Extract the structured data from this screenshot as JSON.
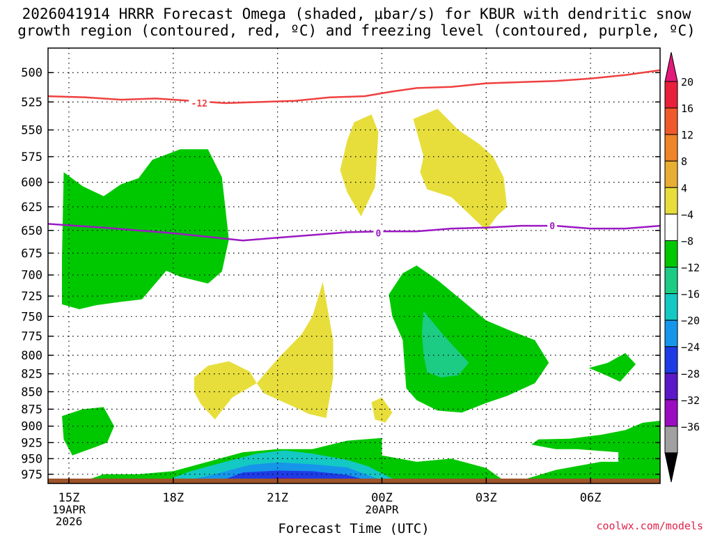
{
  "title_line1": "2026041914 HRRR Forecast Omega (shaded, μbar/s) for KBUR with dendritic snow",
  "title_line2": "growth region (contoured, red, ºC) and freezing level (contoured, purple, ºC)",
  "credit": "coolwx.com/models",
  "chart_data": {
    "type": "time-height cross section",
    "xlabel": "Forecast Time (UTC)",
    "x_ticks": [
      {
        "hour": 0,
        "label": "15Z",
        "sub1": "19APR",
        "sub2": "2026"
      },
      {
        "hour": 3,
        "label": "18Z"
      },
      {
        "hour": 6,
        "label": "21Z"
      },
      {
        "hour": 9,
        "label": "00Z",
        "sub1": "20APR"
      },
      {
        "hour": 12,
        "label": "03Z"
      },
      {
        "hour": 15,
        "label": "06Z"
      }
    ],
    "xlim_hours": [
      -0.6,
      17.0
    ],
    "ylabel": "",
    "y_ticks": [
      500,
      525,
      550,
      575,
      600,
      625,
      650,
      675,
      700,
      725,
      750,
      775,
      800,
      825,
      850,
      875,
      900,
      925,
      950,
      975
    ],
    "ylim_hPa": [
      990,
      480
    ],
    "y_scale": "log-pressure (inverted)",
    "colorbar": {
      "labels": [
        "20",
        "16",
        "12",
        "8",
        "4",
        "−4",
        "−8",
        "−12",
        "−16",
        "−20",
        "−24",
        "−28",
        "−32",
        "−36"
      ],
      "colors": [
        "#e8203a",
        "#f05a2a",
        "#ef8428",
        "#e7ae32",
        "#e7de3c",
        "#ffffff",
        "#00c800",
        "#1ccc84",
        "#14c8c4",
        "#1696ea",
        "#1e3ce6",
        "#5a18c8",
        "#9a0cc0",
        "#a0a0a0"
      ],
      "top_arrow_color": "#e21a7a",
      "bottom_arrow_color": "#000000"
    },
    "contours": [
      {
        "color": "#f04040",
        "label": "-12",
        "label_at": [
          3.75,
          526
        ],
        "points": [
          [
            -0.6,
            520
          ],
          [
            0.5,
            521
          ],
          [
            1.5,
            523
          ],
          [
            2.5,
            522
          ],
          [
            3.5,
            524
          ],
          [
            4.5,
            526
          ],
          [
            5.5,
            525
          ],
          [
            6.5,
            524
          ],
          [
            7.5,
            521
          ],
          [
            8.5,
            520
          ],
          [
            9.3,
            516
          ],
          [
            10,
            513
          ],
          [
            11,
            512
          ],
          [
            12,
            509
          ],
          [
            13,
            508
          ],
          [
            14,
            507
          ],
          [
            15,
            505
          ],
          [
            16,
            502
          ],
          [
            17,
            498
          ]
        ]
      },
      {
        "color": "#9b19c3",
        "label": "0",
        "label_at_list": [
          [
            8.9,
            653
          ],
          [
            13.9,
            645
          ]
        ],
        "points": [
          [
            -0.6,
            643
          ],
          [
            1,
            647
          ],
          [
            2,
            650
          ],
          [
            3,
            653
          ],
          [
            4,
            657
          ],
          [
            5,
            661
          ],
          [
            6,
            658
          ],
          [
            7,
            655
          ],
          [
            8,
            652
          ],
          [
            9,
            651
          ],
          [
            10,
            651
          ],
          [
            11,
            648
          ],
          [
            12,
            647
          ],
          [
            13,
            645
          ],
          [
            14,
            645
          ],
          [
            15,
            648
          ],
          [
            16,
            648
          ],
          [
            17,
            645
          ]
        ]
      }
    ],
    "shaded_regions": [
      {
        "level": "-4 to -8",
        "color": "#00c800",
        "points": [
          [
            -0.15,
            590
          ],
          [
            0.4,
            604
          ],
          [
            1,
            614
          ],
          [
            1.5,
            602
          ],
          [
            2,
            596
          ],
          [
            2.4,
            578
          ],
          [
            3.2,
            568
          ],
          [
            4,
            568
          ],
          [
            4.4,
            595
          ],
          [
            4.6,
            660
          ],
          [
            4.4,
            696
          ],
          [
            4,
            710
          ],
          [
            3.2,
            702
          ],
          [
            2.8,
            695
          ],
          [
            2.1,
            729
          ],
          [
            1.5,
            732
          ],
          [
            0.8,
            736
          ],
          [
            0.3,
            741
          ],
          [
            -0.2,
            735
          ],
          [
            -0.2,
            680
          ]
        ]
      },
      {
        "level": "-4 to -8",
        "color": "#00c800",
        "points": [
          [
            -0.2,
            885
          ],
          [
            0.4,
            875
          ],
          [
            1,
            872
          ],
          [
            1.3,
            900
          ],
          [
            1.1,
            925
          ],
          [
            0.6,
            935
          ],
          [
            0.1,
            945
          ],
          [
            -0.15,
            920
          ]
        ]
      },
      {
        "level": "-4 to -8",
        "color": "#00c800",
        "points": [
          [
            0.5,
            985
          ],
          [
            1,
            975
          ],
          [
            2,
            975
          ],
          [
            3,
            970
          ],
          [
            4,
            955
          ],
          [
            5,
            940
          ],
          [
            6,
            935
          ],
          [
            7,
            935
          ],
          [
            8,
            922
          ],
          [
            9,
            918
          ],
          [
            9,
            945
          ],
          [
            10,
            955
          ],
          [
            11,
            950
          ],
          [
            12,
            965
          ],
          [
            12.5,
            985
          ]
        ]
      },
      {
        "level": "-4 to -8",
        "color": "#00c800",
        "points": [
          [
            13,
            985
          ],
          [
            14,
            968
          ],
          [
            15.3,
            955
          ],
          [
            15.8,
            955
          ],
          [
            15.8,
            940
          ],
          [
            14.6,
            935
          ],
          [
            14,
            935
          ],
          [
            13.3,
            928
          ],
          [
            13.5,
            920
          ],
          [
            14.4,
            919
          ],
          [
            15.3,
            913
          ],
          [
            16,
            906
          ],
          [
            16.5,
            895
          ],
          [
            17,
            892
          ],
          [
            17,
            985
          ]
        ]
      },
      {
        "level": "-4 to -8",
        "color": "#00c800",
        "points": [
          [
            9.2,
            723
          ],
          [
            9.6,
            698
          ],
          [
            10,
            689
          ],
          [
            10.6,
            706
          ],
          [
            11.5,
            737
          ],
          [
            12,
            755
          ],
          [
            12.7,
            768
          ],
          [
            13.4,
            780
          ],
          [
            13.8,
            810
          ],
          [
            13.4,
            838
          ],
          [
            12.6,
            856
          ],
          [
            12,
            866
          ],
          [
            11.3,
            880
          ],
          [
            10.6,
            877
          ],
          [
            10,
            862
          ],
          [
            9.7,
            845
          ],
          [
            9.6,
            780
          ],
          [
            9.3,
            750
          ]
        ]
      },
      {
        "level": "-4 to -8",
        "color": "#00c800",
        "points": [
          [
            14.95,
            817
          ],
          [
            15.5,
            810
          ],
          [
            16,
            797
          ],
          [
            16.3,
            812
          ],
          [
            15.85,
            836
          ],
          [
            15.4,
            826
          ]
        ]
      },
      {
        "level": "-8 to -12",
        "color": "#1ccc84",
        "points": [
          [
            10.2,
            743
          ],
          [
            10.7,
            770
          ],
          [
            11.2,
            795
          ],
          [
            11.5,
            810
          ],
          [
            11.2,
            827
          ],
          [
            10.7,
            830
          ],
          [
            10.3,
            823
          ],
          [
            10.2,
            800
          ],
          [
            10.15,
            770
          ]
        ]
      },
      {
        "level": "-12 to -16",
        "color": "#14c8c4",
        "points": [
          [
            2.8,
            985
          ],
          [
            3.5,
            970
          ],
          [
            4.5,
            955
          ],
          [
            5.4,
            942
          ],
          [
            6.2,
            937
          ],
          [
            7,
            942
          ],
          [
            8,
            952
          ],
          [
            8.6,
            962
          ],
          [
            9.4,
            985
          ]
        ]
      },
      {
        "level": "-16 to -20",
        "color": "#1696ea",
        "points": [
          [
            3.4,
            985
          ],
          [
            4.2,
            975
          ],
          [
            5.2,
            960
          ],
          [
            6,
            956
          ],
          [
            7,
            959
          ],
          [
            8,
            964
          ],
          [
            9,
            985
          ]
        ]
      },
      {
        "level": "-20 to -24",
        "color": "#1e3ce6",
        "points": [
          [
            4.4,
            985
          ],
          [
            5,
            972
          ],
          [
            6,
            969
          ],
          [
            7,
            970
          ],
          [
            8,
            976
          ],
          [
            8.6,
            985
          ]
        ]
      },
      {
        "level": "-24 to -28",
        "color": "#5a18c8",
        "points": [
          [
            5.5,
            985
          ],
          [
            6,
            980
          ],
          [
            7,
            982
          ],
          [
            7,
            985
          ]
        ]
      },
      {
        "level": "4 to 8",
        "color": "#e7de3c",
        "points": [
          [
            3.6,
            830
          ],
          [
            4,
            814
          ],
          [
            4.6,
            808
          ],
          [
            5.2,
            822
          ],
          [
            5.4,
            838
          ],
          [
            4.7,
            858
          ],
          [
            4.2,
            890
          ],
          [
            3.8,
            868
          ],
          [
            3.6,
            850
          ]
        ]
      },
      {
        "level": "4 to 8",
        "color": "#e7de3c",
        "points": [
          [
            5.4,
            838
          ],
          [
            6,
            805
          ],
          [
            6.7,
            772
          ],
          [
            7,
            750
          ],
          [
            7.3,
            708
          ],
          [
            7.6,
            780
          ],
          [
            7.6,
            830
          ],
          [
            7.4,
            888
          ],
          [
            6.9,
            882
          ],
          [
            6.4,
            870
          ],
          [
            5.6,
            852
          ]
        ]
      },
      {
        "level": "4 to 8",
        "color": "#e7de3c",
        "points": [
          [
            8.2,
            543
          ],
          [
            8.7,
            536
          ],
          [
            8.9,
            552
          ],
          [
            8.8,
            605
          ],
          [
            8.4,
            635
          ],
          [
            8,
            610
          ],
          [
            7.8,
            588
          ],
          [
            8,
            560
          ]
        ]
      },
      {
        "level": "4 to 8",
        "color": "#e7de3c",
        "points": [
          [
            9.9,
            540
          ],
          [
            10.6,
            531
          ],
          [
            11.2,
            550
          ],
          [
            11.8,
            563
          ],
          [
            12.2,
            575
          ],
          [
            12.5,
            595
          ],
          [
            12.6,
            625
          ],
          [
            12.3,
            635
          ],
          [
            12,
            650
          ],
          [
            11,
            615
          ],
          [
            10.3,
            607
          ],
          [
            10.1,
            590
          ],
          [
            10.2,
            575
          ]
        ]
      },
      {
        "level": "4 to 8",
        "color": "#e7de3c",
        "points": [
          [
            8.7,
            865
          ],
          [
            9,
            858
          ],
          [
            9.3,
            880
          ],
          [
            9.1,
            895
          ],
          [
            8.8,
            890
          ]
        ]
      }
    ],
    "ground_color": "#9e5429"
  }
}
